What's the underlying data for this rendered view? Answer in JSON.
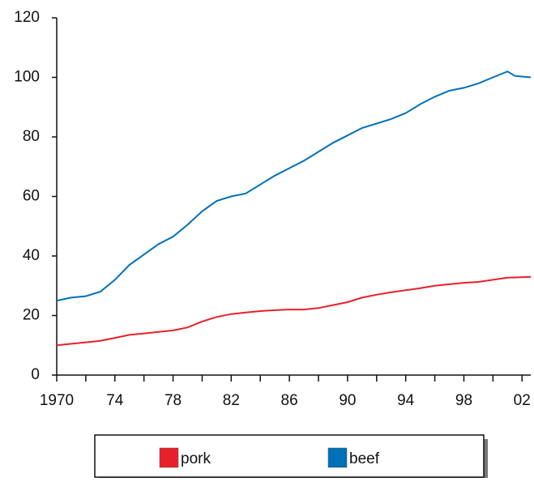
{
  "chart_data": {
    "type": "line",
    "x": [
      1970,
      1971,
      1972,
      1973,
      1974,
      1975,
      1976,
      1977,
      1978,
      1979,
      1980,
      1981,
      1982,
      1983,
      1984,
      1985,
      1986,
      1987,
      1988,
      1989,
      1990,
      1991,
      1992,
      1993,
      1994,
      1995,
      1996,
      1997,
      1998,
      1999,
      2000,
      2001,
      2001.5,
      2002.6
    ],
    "series": [
      {
        "name": "pork",
        "color": "#e8202a",
        "values": [
          10,
          10.5,
          11,
          11.5,
          12.5,
          13.5,
          14,
          14.5,
          15,
          16,
          18,
          19.5,
          20.5,
          21,
          21.5,
          21.8,
          22,
          22,
          22.5,
          23.5,
          24.5,
          26,
          27,
          27.8,
          28.5,
          29.2,
          30,
          30.5,
          31,
          31.3,
          32,
          32.7,
          32.8,
          33
        ]
      },
      {
        "name": "beef",
        "color": "#0070b8",
        "values": [
          25,
          26,
          26.5,
          28,
          32,
          37,
          40.5,
          44,
          46.5,
          50.5,
          55,
          58.5,
          60,
          61,
          64,
          67,
          69.5,
          72,
          75,
          78,
          80.5,
          83,
          84.5,
          86,
          88,
          91,
          93.5,
          95.5,
          96.5,
          98,
          100,
          102,
          100.5,
          100
        ]
      }
    ],
    "xlim": [
      1970,
      2002.6
    ],
    "xticks": [
      {
        "value": 1970,
        "label": "1970"
      },
      {
        "value": 1974,
        "label": "74"
      },
      {
        "value": 1978,
        "label": "78"
      },
      {
        "value": 1982,
        "label": "82"
      },
      {
        "value": 1986,
        "label": "86"
      },
      {
        "value": 1990,
        "label": "90"
      },
      {
        "value": 1994,
        "label": "94"
      },
      {
        "value": 1998,
        "label": "98"
      },
      {
        "value": 2002,
        "label": "02"
      }
    ],
    "xminorticks": [
      1972,
      1976,
      1980,
      1984,
      1988,
      1992,
      1996,
      2000
    ],
    "ylim": [
      0,
      120
    ],
    "yticks": [
      0,
      20,
      40,
      60,
      80,
      100,
      120
    ]
  }
}
